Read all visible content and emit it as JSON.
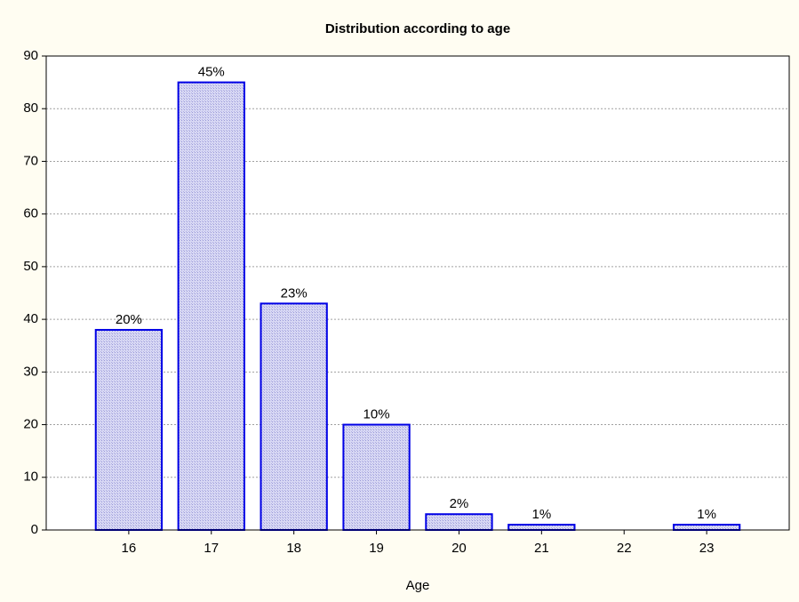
{
  "chart_data": {
    "type": "bar",
    "title": "Distribution according to age",
    "x_label": "Age",
    "categories": [
      "16",
      "17",
      "18",
      "19",
      "20",
      "21",
      "22",
      "23"
    ],
    "values": [
      38,
      85,
      43,
      20,
      3,
      1,
      0,
      1
    ],
    "bar_annotations": [
      "20%",
      "45%",
      "23%",
      "10%",
      "2%",
      "1%",
      null,
      "1%"
    ],
    "color": "#0000e6",
    "ylim": [
      0,
      90
    ],
    "yticks": [
      0,
      10,
      20,
      30,
      40,
      50,
      60,
      70,
      80,
      90
    ],
    "grid": true
  }
}
